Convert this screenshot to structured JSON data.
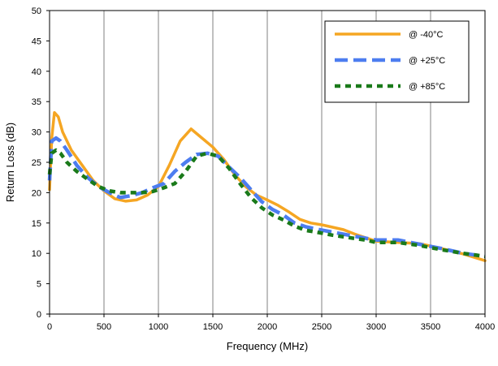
{
  "chart_data": {
    "type": "line",
    "title": "",
    "xlabel": "Frequency (MHz)",
    "ylabel": "Return Loss (dB)",
    "xlim": [
      0,
      4000
    ],
    "ylim": [
      0,
      50
    ],
    "x_ticks": [
      0,
      500,
      1000,
      1500,
      2000,
      2500,
      3000,
      3500,
      4000
    ],
    "y_ticks": [
      0,
      5,
      10,
      15,
      20,
      25,
      30,
      35,
      40,
      45,
      50
    ],
    "grid": "vertical",
    "legend_position": "top-right",
    "series": [
      {
        "name": "@ -40°C",
        "color": "#F5A623",
        "style": "solid",
        "points": [
          [
            0,
            20.5
          ],
          [
            20,
            29
          ],
          [
            45,
            33.2
          ],
          [
            80,
            32.5
          ],
          [
            120,
            30
          ],
          [
            200,
            27
          ],
          [
            300,
            24.5
          ],
          [
            400,
            22
          ],
          [
            500,
            20.3
          ],
          [
            600,
            19
          ],
          [
            700,
            18.6
          ],
          [
            800,
            18.8
          ],
          [
            900,
            19.6
          ],
          [
            1000,
            21
          ],
          [
            1100,
            24.5
          ],
          [
            1200,
            28.5
          ],
          [
            1300,
            30.5
          ],
          [
            1400,
            29
          ],
          [
            1500,
            27.5
          ],
          [
            1600,
            25.5
          ],
          [
            1700,
            23
          ],
          [
            1800,
            21
          ],
          [
            1900,
            19.6
          ],
          [
            2000,
            18.8
          ],
          [
            2100,
            17.9
          ],
          [
            2200,
            16.8
          ],
          [
            2300,
            15.6
          ],
          [
            2400,
            15
          ],
          [
            2500,
            14.7
          ],
          [
            2600,
            14.3
          ],
          [
            2700,
            13.9
          ],
          [
            2800,
            13.2
          ],
          [
            2900,
            12.6
          ],
          [
            3000,
            12
          ],
          [
            3200,
            11.8
          ],
          [
            3400,
            11.6
          ],
          [
            3600,
            10.8
          ],
          [
            3800,
            9.9
          ],
          [
            4000,
            8.8
          ]
        ]
      },
      {
        "name": "@ +25°C",
        "color": "#4D7DF0",
        "style": "dashed",
        "points": [
          [
            0,
            22
          ],
          [
            20,
            28.5
          ],
          [
            60,
            29
          ],
          [
            100,
            28.5
          ],
          [
            160,
            27
          ],
          [
            250,
            24.5
          ],
          [
            350,
            22.5
          ],
          [
            450,
            21
          ],
          [
            550,
            20
          ],
          [
            650,
            19.2
          ],
          [
            750,
            19.5
          ],
          [
            850,
            20
          ],
          [
            950,
            20.8
          ],
          [
            1050,
            21.5
          ],
          [
            1150,
            23.5
          ],
          [
            1250,
            25
          ],
          [
            1350,
            26.3
          ],
          [
            1450,
            26.5
          ],
          [
            1550,
            26
          ],
          [
            1650,
            24.2
          ],
          [
            1750,
            22.5
          ],
          [
            1850,
            20.5
          ],
          [
            1950,
            18.5
          ],
          [
            2050,
            17.2
          ],
          [
            2150,
            16.3
          ],
          [
            2250,
            15
          ],
          [
            2350,
            14.4
          ],
          [
            2450,
            14
          ],
          [
            2600,
            13.5
          ],
          [
            2750,
            13
          ],
          [
            2900,
            12.5
          ],
          [
            3000,
            12.2
          ],
          [
            3200,
            12.2
          ],
          [
            3400,
            11.5
          ],
          [
            3600,
            10.8
          ],
          [
            3800,
            10
          ],
          [
            4000,
            9.5
          ]
        ]
      },
      {
        "name": "@ +85°C",
        "color": "#1A7A1A",
        "style": "dotted",
        "points": [
          [
            0,
            23
          ],
          [
            20,
            26.5
          ],
          [
            60,
            27
          ],
          [
            100,
            26.5
          ],
          [
            160,
            25
          ],
          [
            250,
            23.5
          ],
          [
            350,
            22.2
          ],
          [
            450,
            21
          ],
          [
            550,
            20.3
          ],
          [
            650,
            20
          ],
          [
            750,
            20
          ],
          [
            850,
            20
          ],
          [
            950,
            20.2
          ],
          [
            1050,
            20.8
          ],
          [
            1150,
            21.5
          ],
          [
            1250,
            23.5
          ],
          [
            1350,
            26
          ],
          [
            1450,
            26.5
          ],
          [
            1550,
            26
          ],
          [
            1650,
            24
          ],
          [
            1750,
            21.5
          ],
          [
            1850,
            19.2
          ],
          [
            1950,
            17.5
          ],
          [
            2050,
            16.3
          ],
          [
            2150,
            15.5
          ],
          [
            2250,
            14.5
          ],
          [
            2350,
            13.8
          ],
          [
            2450,
            13.5
          ],
          [
            2600,
            13
          ],
          [
            2750,
            12.6
          ],
          [
            2900,
            12.2
          ],
          [
            3000,
            11.8
          ],
          [
            3200,
            11.8
          ],
          [
            3400,
            11.3
          ],
          [
            3600,
            10.6
          ],
          [
            3800,
            10
          ],
          [
            4000,
            9.5
          ]
        ]
      }
    ]
  }
}
